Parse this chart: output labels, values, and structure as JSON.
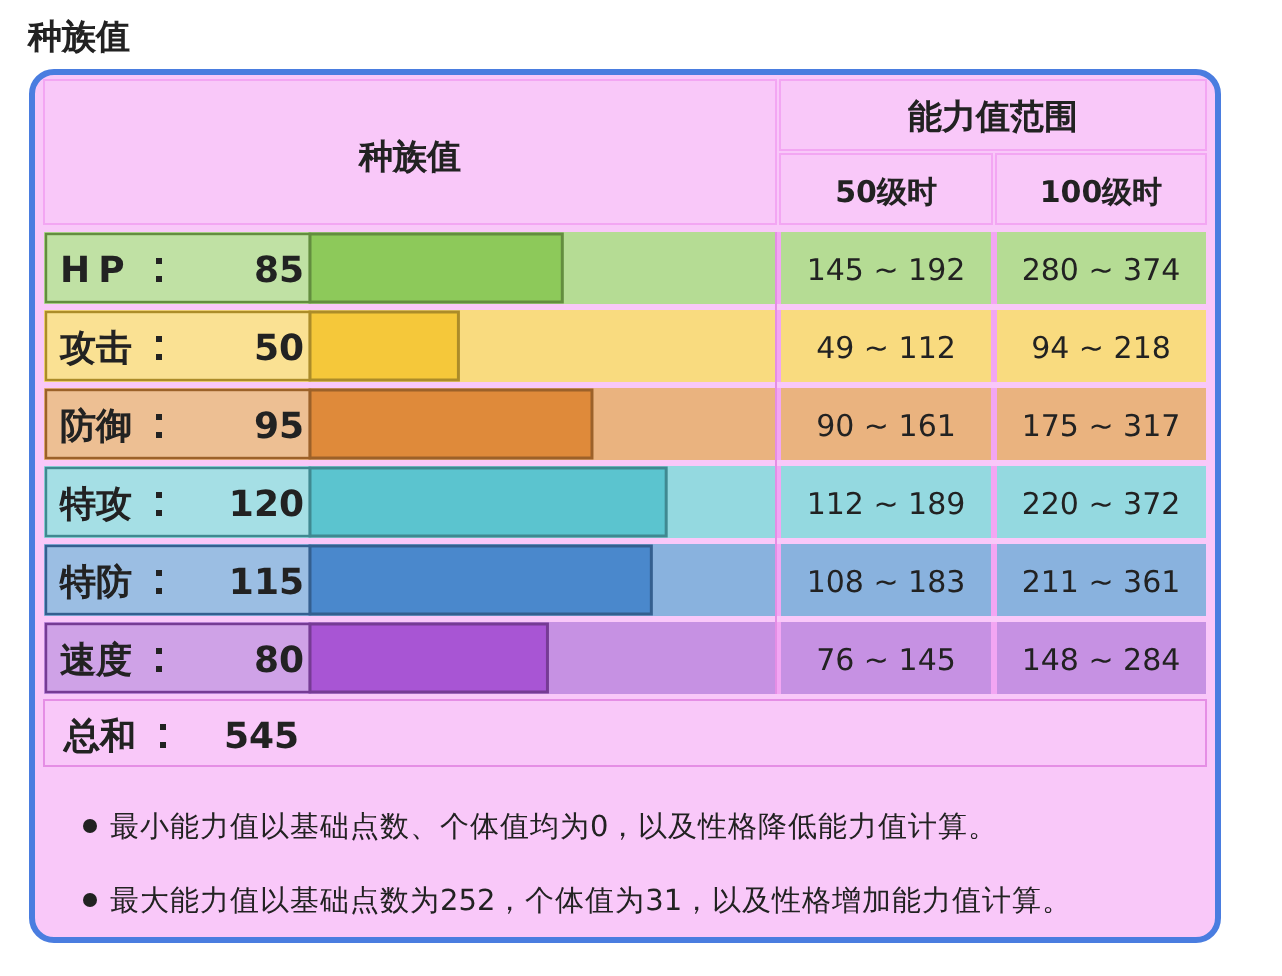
{
  "chart_data": {
    "type": "bar",
    "orientation": "horizontal",
    "title": "种族值",
    "categories": [
      "HP",
      "攻击",
      "防御",
      "特攻",
      "特防",
      "速度"
    ],
    "values": [
      85,
      50,
      95,
      120,
      115,
      80
    ],
    "colors": [
      "#8dc95a",
      "#f5c83a",
      "#df8a3a",
      "#5bc4cf",
      "#4a88cc",
      "#a855d4"
    ],
    "xlim": [
      0,
      157
    ],
    "data_labels": true,
    "annotations": [
      "种族值",
      "能力值范围",
      "50级时",
      "100级时",
      "145 ~ 192",
      "280 ~ 374",
      "49 ~ 112",
      "94 ~ 218",
      "90 ~ 161",
      "175 ~ 317",
      "112 ~ 189",
      "220 ~ 372",
      "108 ~ 183",
      "211 ~ 361",
      "76 ~ 145",
      "148 ~ 284",
      "总和",
      "545",
      "最小能力值以基础点数、个体值均为0，以及性格降低能力值计算。",
      "最大能力值以基础点数为252，个体值为31，以及性格增加能力值计算。"
    ]
  }
}
